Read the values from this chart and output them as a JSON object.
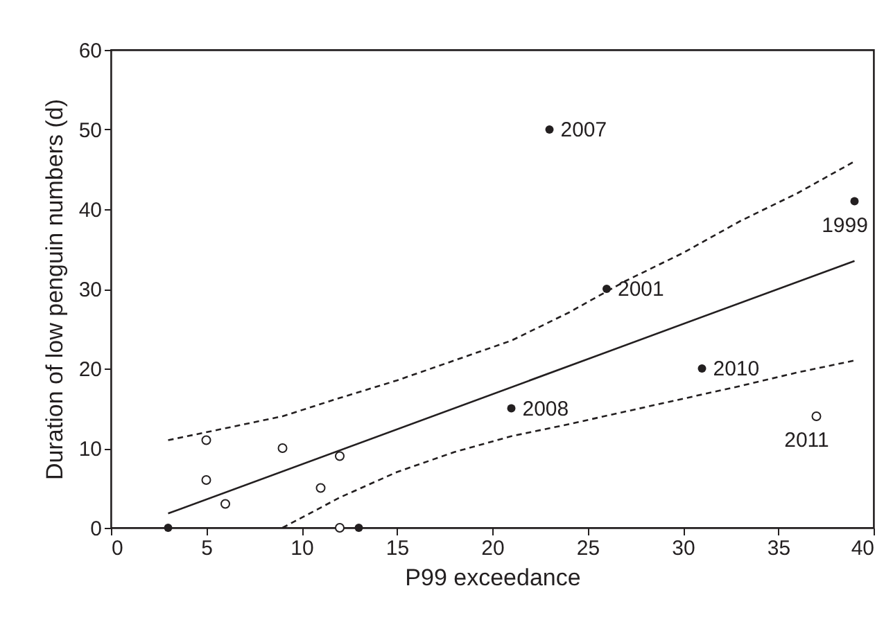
{
  "chart_data": {
    "type": "scatter",
    "xlabel": "P99 exceedance",
    "ylabel": "Duration of low penguin numbers (d)",
    "xlim": [
      0,
      40
    ],
    "xticks": [
      0,
      5,
      10,
      15,
      20,
      25,
      30,
      35,
      40
    ],
    "ylim": [
      0,
      60
    ],
    "yticks": [
      0,
      10,
      20,
      30,
      40,
      50,
      60
    ],
    "grid": false,
    "marker": "circle",
    "series": [
      {
        "color": "#231f20",
        "x": [
          3,
          13,
          21,
          23,
          26,
          31,
          39
        ],
        "values": [
          0,
          0,
          15,
          50,
          30,
          20,
          41
        ]
      },
      {
        "color": "#231f20",
        "x": [
          5,
          5,
          6,
          9,
          11,
          12,
          12,
          37
        ],
        "values": [
          11,
          6,
          3,
          10,
          5,
          9,
          0,
          14
        ]
      },
      {
        "type": "line",
        "color": "#231f20",
        "line_style": "solid",
        "marker": "none",
        "x": [
          3,
          39
        ],
        "values": [
          1.8,
          33.5
        ]
      },
      {
        "type": "line",
        "color": "#231f20",
        "line_style": "dashed",
        "marker": "none",
        "x": [
          3,
          6,
          9,
          12,
          15,
          18,
          21,
          24,
          27,
          30,
          33,
          36,
          39
        ],
        "values": [
          11,
          12.5,
          14,
          16.3,
          18.5,
          21,
          23.5,
          27,
          31,
          34.5,
          38.5,
          42,
          46
        ]
      },
      {
        "type": "line",
        "color": "#231f20",
        "line_style": "dashed",
        "marker": "none",
        "x": [
          9,
          12,
          15,
          18,
          21,
          24,
          27,
          30,
          33,
          36,
          39
        ],
        "values": [
          0,
          3.8,
          7,
          9.5,
          11.5,
          13,
          14.6,
          16.2,
          17.8,
          19.5,
          21
        ]
      }
    ],
    "annotations": [
      {
        "text": "2007",
        "x": 23,
        "y": 50
      },
      {
        "text": "2001",
        "x": 26,
        "y": 30
      },
      {
        "text": "2008",
        "x": 21,
        "y": 15
      },
      {
        "text": "2010",
        "x": 31,
        "y": 20
      },
      {
        "text": "1999",
        "x": 39,
        "y": 41
      },
      {
        "text": "2011",
        "x": 37,
        "y": 14
      }
    ]
  }
}
